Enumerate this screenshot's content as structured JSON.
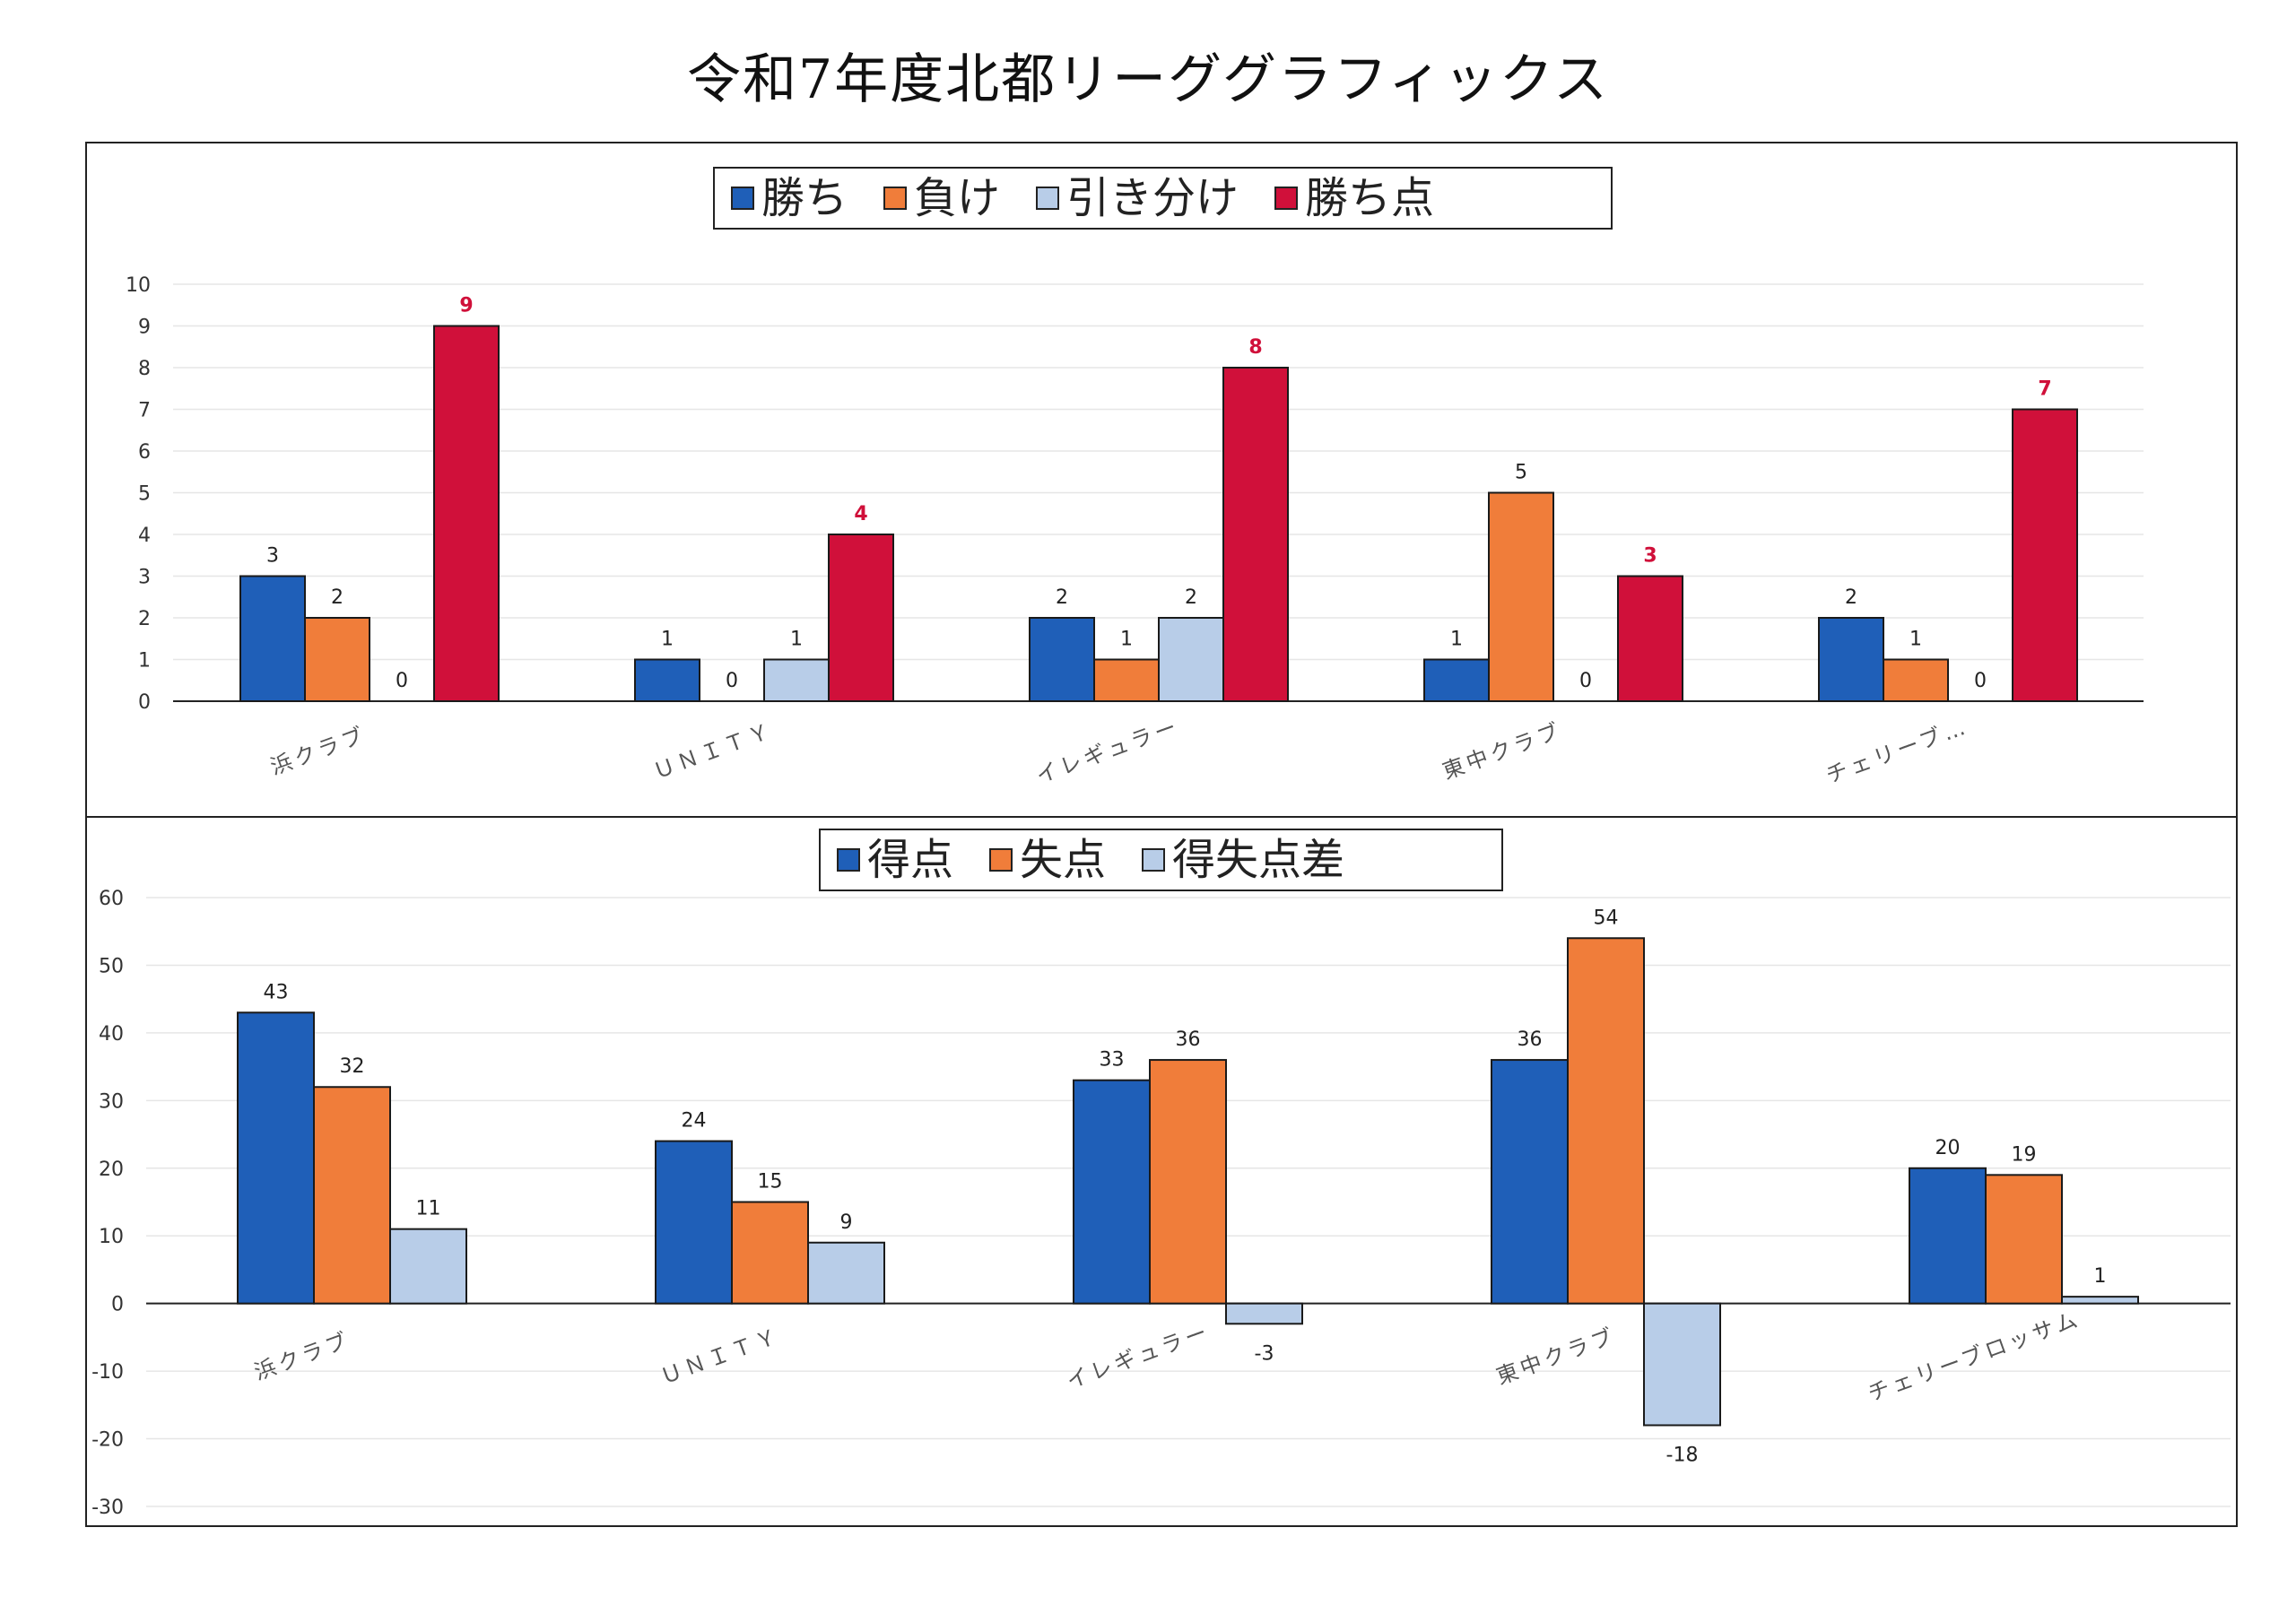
{
  "page": {
    "title": "令和7年度北都リーググラフィックス"
  },
  "colors": {
    "win": "#1f5fb8",
    "loss": "#f07d3a",
    "draw": "#b8cde8",
    "points": "#d0103a",
    "grid": "#e6e6e6",
    "axis": "#222222"
  },
  "legend_top": [
    {
      "label": "勝ち",
      "color": "#1f5fb8"
    },
    {
      "label": "負け",
      "color": "#f07d3a"
    },
    {
      "label": "引き分け",
      "color": "#b8cde8"
    },
    {
      "label": "勝ち点",
      "color": "#d0103a"
    }
  ],
  "legend_bottom": [
    {
      "label": "得点",
      "color": "#1f5fb8"
    },
    {
      "label": "失点",
      "color": "#f07d3a"
    },
    {
      "label": "得失点差",
      "color": "#b8cde8"
    }
  ],
  "chart_data": [
    {
      "type": "bar",
      "categories": [
        "浜クラブ",
        "ＵＮＩＴＹ",
        "イレギュラー",
        "東中クラブ",
        "チェリーブ…"
      ],
      "series": [
        {
          "name": "勝ち",
          "values": [
            3,
            1,
            2,
            1,
            2
          ]
        },
        {
          "name": "負け",
          "values": [
            2,
            0,
            1,
            5,
            1
          ]
        },
        {
          "name": "引き分け",
          "values": [
            0,
            1,
            2,
            0,
            0
          ]
        },
        {
          "name": "勝ち点",
          "values": [
            9,
            4,
            8,
            3,
            7
          ]
        }
      ],
      "yticks": [
        "0",
        "1",
        "2",
        "3",
        "4",
        "5",
        "6",
        "7",
        "8",
        "9",
        "10"
      ],
      "ylim": [
        0,
        10
      ],
      "grid": true,
      "legend": "top-center"
    },
    {
      "type": "bar",
      "categories": [
        "浜クラブ",
        "ＵＮＩＴＹ",
        "イレギュラー",
        "東中クラブ",
        "チェリーブロッサム"
      ],
      "series": [
        {
          "name": "得点",
          "values": [
            43,
            24,
            33,
            36,
            20
          ]
        },
        {
          "name": "失点",
          "values": [
            32,
            15,
            36,
            54,
            19
          ]
        },
        {
          "name": "得失点差",
          "values": [
            11,
            9,
            -3,
            -18,
            1
          ]
        }
      ],
      "yticks": [
        "-30",
        "-20",
        "-10",
        "0",
        "10",
        "20",
        "30",
        "40",
        "50",
        "60"
      ],
      "ylim": [
        -30,
        60
      ],
      "grid": true,
      "legend": "top-center"
    }
  ]
}
